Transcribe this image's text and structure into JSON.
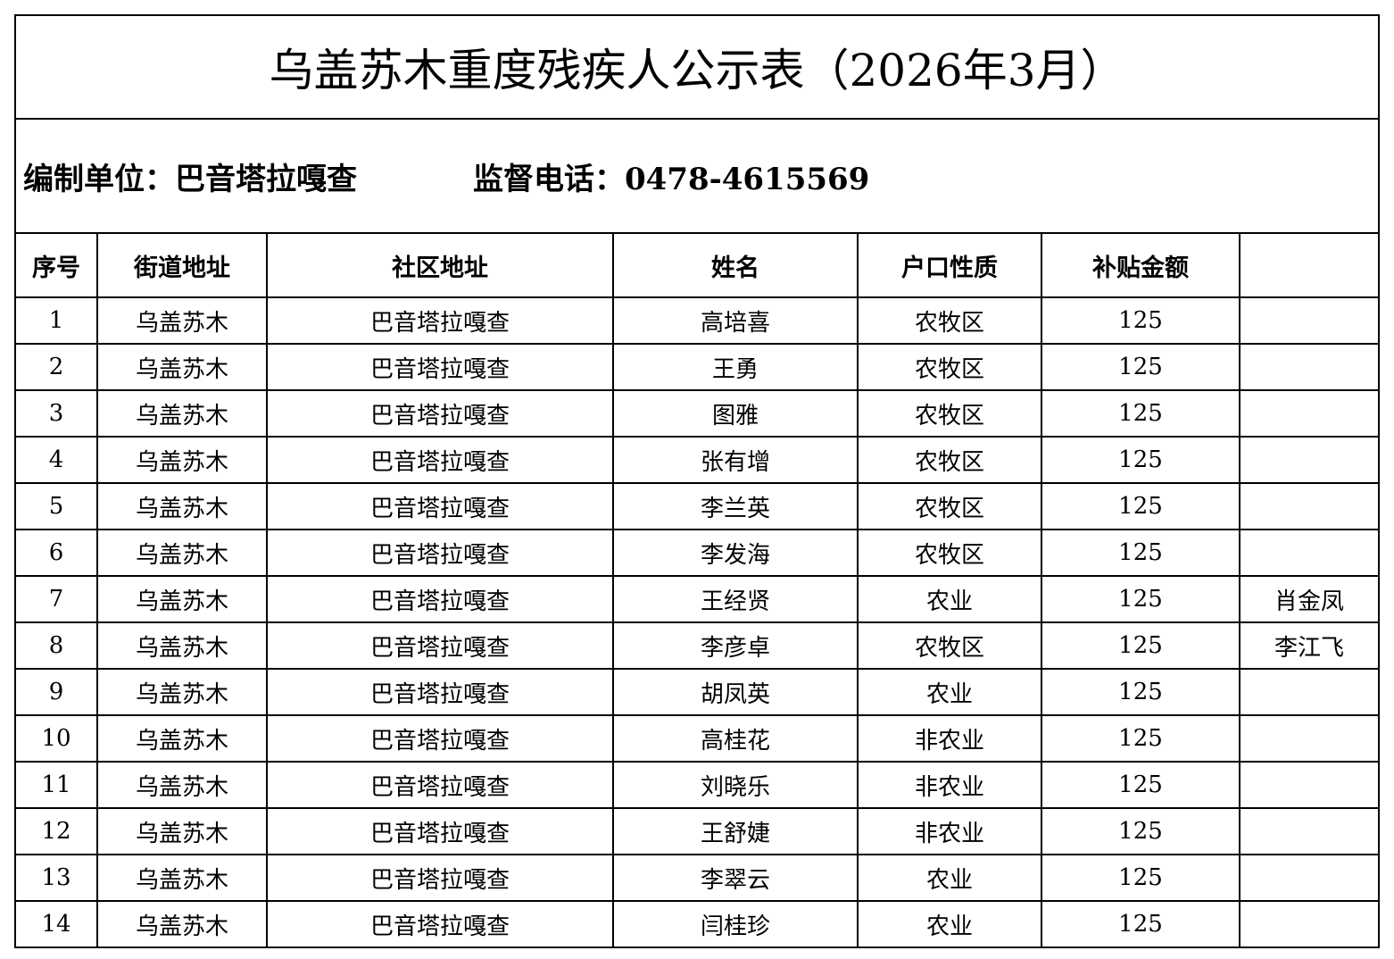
{
  "title": "乌盖苏木重度残疾人公示表（2026年3月）",
  "compiler_label": "编制单位：巴音塔拉嘎查",
  "phone_label": "监督电话：0478-4615569",
  "columns": [
    "序号",
    "街道地址",
    "社区地址",
    "姓名",
    "户口性质",
    "补贴金额",
    ""
  ],
  "rows": [
    [
      "1",
      "乌盖苏木",
      "巴音塔拉嘎查",
      "高培喜",
      "农牧区",
      "125",
      ""
    ],
    [
      "2",
      "乌盖苏木",
      "巴音塔拉嘎查",
      "王勇",
      "农牧区",
      "125",
      ""
    ],
    [
      "3",
      "乌盖苏木",
      "巴音塔拉嘎查",
      "图雅",
      "农牧区",
      "125",
      ""
    ],
    [
      "4",
      "乌盖苏木",
      "巴音塔拉嘎查",
      "张有增",
      "农牧区",
      "125",
      ""
    ],
    [
      "5",
      "乌盖苏木",
      "巴音塔拉嘎查",
      "李兰英",
      "农牧区",
      "125",
      ""
    ],
    [
      "6",
      "乌盖苏木",
      "巴音塔拉嘎查",
      "李发海",
      "农牧区",
      "125",
      ""
    ],
    [
      "7",
      "乌盖苏木",
      "巴音塔拉嘎查",
      "王经贤",
      "农业",
      "125",
      "肖金凤"
    ],
    [
      "8",
      "乌盖苏木",
      "巴音塔拉嘎查",
      "李彦卓",
      "农牧区",
      "125",
      "李江飞"
    ],
    [
      "9",
      "乌盖苏木",
      "巴音塔拉嘎查",
      "胡凤英",
      "农业",
      "125",
      ""
    ],
    [
      "10",
      "乌盖苏木",
      "巴音塔拉嘎查",
      "高桂花",
      "非农业",
      "125",
      ""
    ],
    [
      "11",
      "乌盖苏木",
      "巴音塔拉嘎查",
      "刘晓乐",
      "非农业",
      "125",
      ""
    ],
    [
      "12",
      "乌盖苏木",
      "巴音塔拉嘎查",
      "王舒婕",
      "非农业",
      "125",
      ""
    ],
    [
      "13",
      "乌盖苏木",
      "巴音塔拉嘎查",
      "李翠云",
      "农业",
      "125",
      ""
    ],
    [
      "14",
      "乌盖苏木",
      "巴音塔拉嘎查",
      "闫桂珍",
      "农业",
      "125",
      ""
    ]
  ]
}
